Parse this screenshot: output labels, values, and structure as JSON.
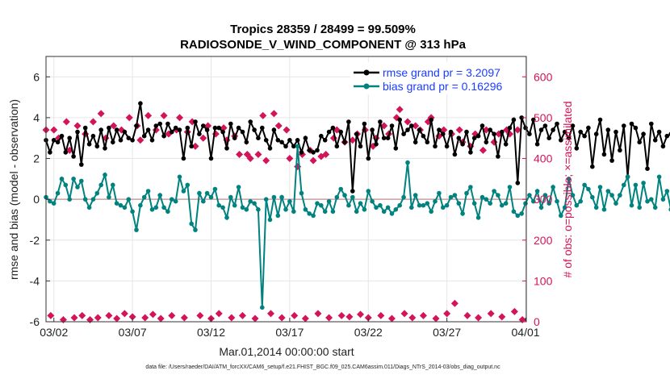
{
  "chart_data": {
    "type": "line",
    "title": "Tropics 28359 / 28499 = 99.509%",
    "subtitle": "RADIOSONDE_V_WIND_COMPONENT @ 313 hPa",
    "xlabel": "Mar.01,2014 00:00:00 start",
    "ylabel": "rmse and bias (model - observation)",
    "ylabel_right": "# of obs: o=possible; ×=assimilated",
    "footer": "data file: /Users/raeder/DAI/ATM_forcXX/CAM6_setup/f.e21.FHIST_BGC.f09_025.CAM6assim.011/Diags_NTrS_2014-03/obs_diag_output.nc",
    "xlim": [
      1.5,
      32.05
    ],
    "ylim": [
      -6,
      7
    ],
    "ylim_right": [
      0,
      650
    ],
    "x_ticks": [
      {
        "value": 2,
        "label": "03/02"
      },
      {
        "value": 7,
        "label": "03/07"
      },
      {
        "value": 12,
        "label": "03/12"
      },
      {
        "value": 17,
        "label": "03/17"
      },
      {
        "value": 22,
        "label": "03/22"
      },
      {
        "value": 27,
        "label": "03/27"
      },
      {
        "value": 32,
        "label": "04/01"
      }
    ],
    "y_ticks": [
      -6,
      -4,
      -2,
      0,
      2,
      4,
      6
    ],
    "y_ticks_right": [
      0,
      100,
      200,
      300,
      400,
      500,
      600
    ],
    "grid": true,
    "legend": {
      "position": "top-right"
    },
    "series": [
      {
        "name": "rmse grand pr = 3.2097",
        "color": "#000000",
        "x_start": 1.5,
        "x_step": 0.25,
        "values": [
          2.9,
          2.3,
          2.9,
          2.8,
          3.1,
          2.3,
          3.0,
          2.1,
          3.3,
          1.7,
          3.5,
          2.7,
          3.1,
          2.6,
          3.4,
          2.5,
          3.5,
          2.8,
          3.4,
          2.9,
          3.3,
          3.0,
          2.9,
          3.6,
          4.7,
          3.1,
          3.4,
          2.9,
          3.6,
          3.7,
          3.1,
          3.7,
          3.3,
          3.5,
          3.4,
          2.0,
          3.5,
          2.6,
          3.8,
          3.2,
          3.6,
          3.4,
          2.0,
          3.5,
          3.5,
          3.3,
          2.5,
          3.7,
          3.0,
          3.5,
          3.3,
          2.8,
          3.8,
          3.4,
          3.0,
          3.5,
          2.9,
          2.5,
          3.4,
          2.9,
          2.8,
          2.6,
          2.9,
          2.6,
          2.9,
          2.3,
          3.0,
          2.4,
          2.3,
          2.4,
          3.1,
          2.9,
          3.3,
          3.5,
          2.6,
          3.3,
          2.8,
          3.8,
          0.4,
          3.2,
          2.6,
          3.7,
          2.0,
          3.4,
          2.7,
          3.8,
          3.0,
          3.0,
          3.6,
          2.5,
          3.9,
          3.2,
          3.4,
          3.6,
          2.8,
          3.4,
          3.1,
          2.8,
          3.9,
          2.6,
          3.4,
          3.2,
          2.6,
          3.3,
          2.2,
          3.0,
          2.7,
          3.3,
          2.3,
          3.0,
          3.1,
          3.6,
          2.8,
          3.4,
          3.2,
          2.1,
          3.3,
          2.7,
          3.5,
          3.9,
          0.8,
          4.0,
          3.5,
          3.2,
          3.9,
          2.7,
          3.4,
          3.6,
          3.0,
          3.4,
          3.7,
          2.9,
          3.3,
          3.0,
          3.6,
          2.5,
          3.3,
          3.1,
          3.5,
          1.6,
          3.2,
          3.9,
          2.2,
          3.4,
          1.9,
          3.3,
          2.4,
          3.6,
          1.1,
          3.7,
          3.5,
          2.8,
          3.2,
          1.5,
          3.7,
          2.9,
          3.3,
          2.6,
          3.1,
          3.2,
          3.6,
          3.0,
          3.0,
          2.9,
          3.2
        ]
      },
      {
        "name": "bias grand pr = 0.16296",
        "color": "#00827f",
        "x_start": 1.5,
        "x_step": 0.25,
        "values": [
          0.1,
          -0.1,
          -0.2,
          0.3,
          1.0,
          0.7,
          0.0,
          1.0,
          0.6,
          0.9,
          0.0,
          -0.4,
          0.0,
          0.3,
          0.7,
          1.2,
          0.1,
          0.7,
          -0.2,
          -0.3,
          -0.4,
          0.0,
          -0.6,
          -1.5,
          -0.3,
          0.1,
          0.4,
          -0.5,
          -0.4,
          0.2,
          -0.4,
          -0.6,
          0.0,
          -0.1,
          1.1,
          0.4,
          0.7,
          -1.2,
          -1.5,
          0.3,
          -0.1,
          0.3,
          0.1,
          0.5,
          -0.3,
          -0.4,
          -0.9,
          0.1,
          -0.3,
          0.6,
          -0.4,
          -0.5,
          -0.1,
          -0.2,
          -0.5,
          -5.3,
          0.0,
          -1.0,
          0.1,
          -0.8,
          0.1,
          -0.5,
          -0.1,
          -0.6,
          2.6,
          0.3,
          -0.5,
          -0.7,
          -0.8,
          -0.2,
          -0.3,
          -0.6,
          -0.1,
          -0.6,
          0.1,
          0.5,
          0.2,
          -0.3,
          0.1,
          -0.6,
          -0.2,
          -0.5,
          0.4,
          -0.1,
          -0.4,
          -0.3,
          -0.6,
          -0.4,
          -0.7,
          -0.5,
          -0.3,
          0.1,
          1.8,
          -0.4,
          0.2,
          -0.3,
          -0.3,
          -0.2,
          -0.6,
          -0.1,
          0.3,
          -0.4,
          -0.3,
          0.1,
          0.2,
          -0.2,
          -0.7,
          0.3,
          0.6,
          -0.2,
          -0.9,
          0.1,
          0.0,
          -0.2,
          0.4,
          0.2,
          -0.3,
          -0.2,
          0.6,
          -0.6,
          -0.8,
          -0.7,
          -0.2,
          0.2,
          -0.1,
          0.4,
          -0.4,
          0.2,
          -0.2,
          0.6,
          -0.1,
          -0.8,
          -0.4,
          1.0,
          0.2,
          -0.3,
          -0.1,
          0.7,
          0.5,
          0.1,
          -0.4,
          0.6,
          -0.5,
          0.4,
          0.2,
          -0.2,
          0.2,
          0.7,
          1.1,
          -0.3,
          0.7,
          -0.4,
          0.8,
          -0.1,
          0.0,
          -0.4,
          1.1,
          0.0,
          0.4,
          -0.5,
          0.6,
          -0.2,
          0.1,
          0.0,
          2.5
        ]
      }
    ],
    "obs_series": {
      "name": "# of obs assimilated",
      "color": "#d4145a",
      "x_start": 1.5,
      "x_step": 0.5,
      "points": [
        [
          1.5,
          470
        ],
        [
          1.8,
          15
        ],
        [
          2.0,
          470
        ],
        [
          2.3,
          450
        ],
        [
          2.6,
          5
        ],
        [
          2.8,
          490
        ],
        [
          3.0,
          420
        ],
        [
          3.3,
          10
        ],
        [
          3.5,
          480
        ],
        [
          3.8,
          15
        ],
        [
          4.0,
          460
        ],
        [
          4.3,
          5
        ],
        [
          4.5,
          490
        ],
        [
          4.8,
          10
        ],
        [
          5.0,
          510
        ],
        [
          5.3,
          450
        ],
        [
          5.5,
          15
        ],
        [
          5.8,
          480
        ],
        [
          6.0,
          8
        ],
        [
          6.3,
          470
        ],
        [
          6.5,
          20
        ],
        [
          6.8,
          500
        ],
        [
          7.0,
          12
        ],
        [
          7.3,
          480
        ],
        [
          7.5,
          445
        ],
        [
          7.8,
          10
        ],
        [
          8.0,
          505
        ],
        [
          8.3,
          18
        ],
        [
          8.5,
          470
        ],
        [
          8.8,
          8
        ],
        [
          9.0,
          505
        ],
        [
          9.3,
          460
        ],
        [
          9.5,
          15
        ],
        [
          9.8,
          470
        ],
        [
          10.0,
          500
        ],
        [
          10.3,
          10
        ],
        [
          10.5,
          465
        ],
        [
          10.8,
          490
        ],
        [
          11.0,
          430
        ],
        [
          11.3,
          15
        ],
        [
          11.5,
          450
        ],
        [
          11.8,
          480
        ],
        [
          12.0,
          8
        ],
        [
          12.3,
          460
        ],
        [
          12.5,
          20
        ],
        [
          12.8,
          475
        ],
        [
          13.0,
          445
        ],
        [
          13.3,
          10
        ],
        [
          13.5,
          455
        ],
        [
          13.8,
          410
        ],
        [
          14.0,
          15
        ],
        [
          14.3,
          410
        ],
        [
          14.5,
          400
        ],
        [
          14.8,
          8
        ],
        [
          15.0,
          410
        ],
        [
          15.3,
          505
        ],
        [
          15.5,
          395
        ],
        [
          15.8,
          20
        ],
        [
          16.0,
          510
        ],
        [
          16.3,
          480
        ],
        [
          16.5,
          10
        ],
        [
          16.8,
          470
        ],
        [
          17.0,
          400
        ],
        [
          17.3,
          15
        ],
        [
          17.5,
          380
        ],
        [
          17.8,
          410
        ],
        [
          18.0,
          8
        ],
        [
          18.3,
          420
        ],
        [
          18.5,
          395
        ],
        [
          18.8,
          20
        ],
        [
          19.0,
          405
        ],
        [
          19.3,
          410
        ],
        [
          19.5,
          10
        ],
        [
          19.8,
          450
        ],
        [
          20.0,
          470
        ],
        [
          20.3,
          15
        ],
        [
          20.5,
          440
        ],
        [
          20.8,
          12
        ],
        [
          21.0,
          445
        ],
        [
          21.3,
          460
        ],
        [
          21.5,
          18
        ],
        [
          21.8,
          470
        ],
        [
          22.0,
          10
        ],
        [
          22.3,
          430
        ],
        [
          22.5,
          450
        ],
        [
          22.8,
          15
        ],
        [
          23.0,
          480
        ],
        [
          23.3,
          460
        ],
        [
          23.5,
          8
        ],
        [
          23.8,
          500
        ],
        [
          24.0,
          520
        ],
        [
          24.3,
          20
        ],
        [
          24.5,
          490
        ],
        [
          24.8,
          10
        ],
        [
          25.0,
          480
        ],
        [
          25.3,
          470
        ],
        [
          25.5,
          15
        ],
        [
          25.8,
          490
        ],
        [
          26.0,
          500
        ],
        [
          26.3,
          8
        ],
        [
          26.5,
          455
        ],
        [
          26.8,
          470
        ],
        [
          27.0,
          20
        ],
        [
          27.3,
          460
        ],
        [
          27.5,
          45
        ],
        [
          27.8,
          470
        ],
        [
          28.0,
          440
        ],
        [
          28.3,
          15
        ],
        [
          28.5,
          430
        ],
        [
          28.8,
          460
        ],
        [
          29.0,
          10
        ],
        [
          29.3,
          420
        ],
        [
          29.5,
          470
        ],
        [
          29.8,
          20
        ],
        [
          30.0,
          440
        ],
        [
          30.3,
          460
        ],
        [
          30.5,
          12
        ],
        [
          30.8,
          470
        ],
        [
          31.0,
          460
        ],
        [
          31.3,
          25
        ],
        [
          31.5,
          470
        ],
        [
          31.8,
          5
        ]
      ]
    },
    "zero_line_color": "#c8a0a0"
  }
}
